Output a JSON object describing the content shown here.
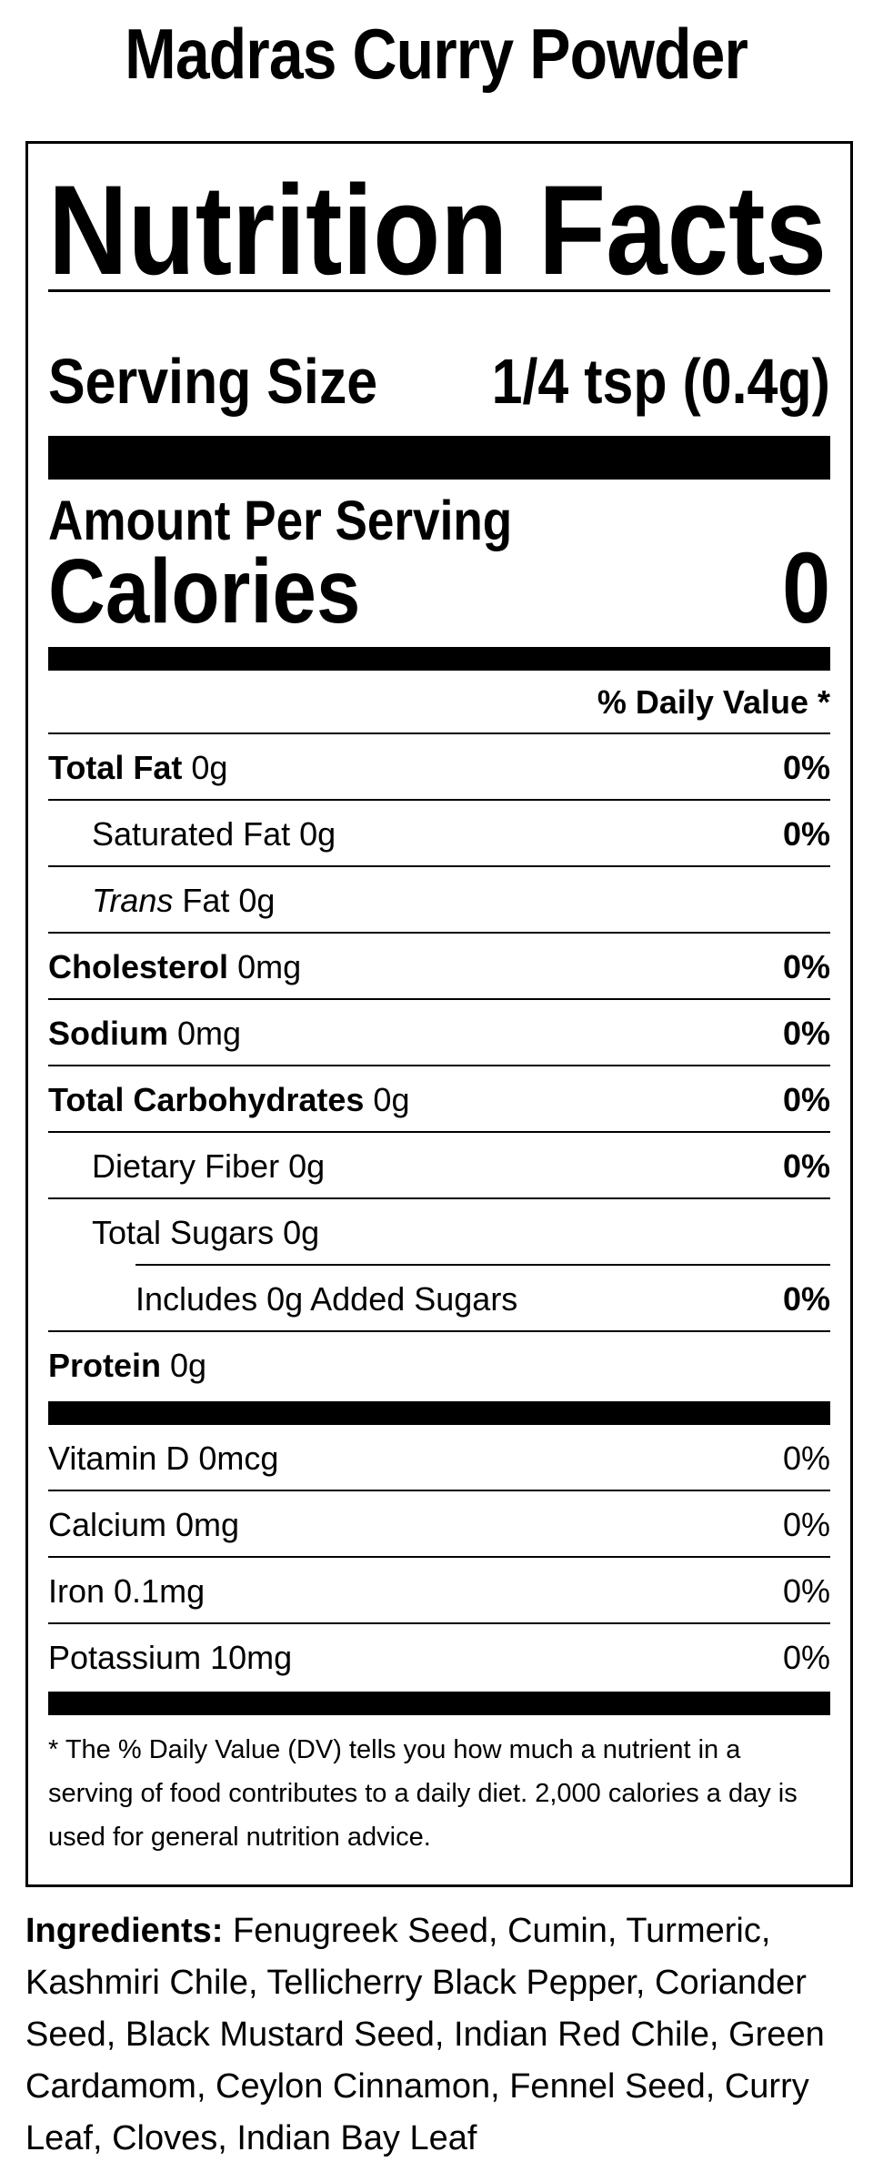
{
  "page": {
    "title": "Madras Curry Powder",
    "background_color": "#ffffff",
    "text_color": "#000000"
  },
  "label": {
    "heading": "Nutrition Facts",
    "serving": {
      "label": "Serving Size",
      "value": "1/4 tsp (0.4g)"
    },
    "amount_per_serving": "Amount Per Serving",
    "calories": {
      "label": "Calories",
      "value": "0"
    },
    "daily_value_header": "% Daily Value *",
    "nutrients": [
      {
        "name": "Total Fat",
        "amount": "0g",
        "dv": "0%"
      },
      {
        "name": "Saturated Fat",
        "amount": "0g",
        "dv": "0%"
      },
      {
        "name": "Trans",
        "amount": "Fat 0g",
        "dv": ""
      },
      {
        "name": "Cholesterol",
        "amount": "0mg",
        "dv": "0%"
      },
      {
        "name": "Sodium",
        "amount": "0mg",
        "dv": "0%"
      },
      {
        "name": "Total Carbohydrates",
        "amount": "0g",
        "dv": "0%"
      },
      {
        "name": "Dietary Fiber",
        "amount": "0g",
        "dv": "0%"
      },
      {
        "name": "Total Sugars",
        "amount": "0g",
        "dv": ""
      },
      {
        "name": "Includes 0g Added Sugars",
        "amount": "",
        "dv": "0%"
      },
      {
        "name": "Protein",
        "amount": "0g",
        "dv": ""
      }
    ],
    "vitamins": [
      {
        "name": "Vitamin D 0mcg",
        "dv": "0%"
      },
      {
        "name": "Calcium 0mg",
        "dv": "0%"
      },
      {
        "name": "Iron 0.1mg",
        "dv": "0%"
      },
      {
        "name": "Potassium 10mg",
        "dv": "0%"
      }
    ],
    "footnote": "* The % Daily Value (DV) tells you how much a nutrient in a serving of food contributes to a daily diet. 2,000 calories a day is used for general nutrition advice."
  },
  "ingredients": {
    "label": "Ingredients:",
    "text": " Fenugreek Seed, Cumin, Turmeric, Kashmiri Chile, Tellicherry Black Pepper, Coriander Seed, Black Mustard Seed, Indian Red Chile, Green Cardamom, Ceylon Cinnamon, Fennel Seed, Curry Leaf, Cloves, Indian Bay Leaf"
  }
}
